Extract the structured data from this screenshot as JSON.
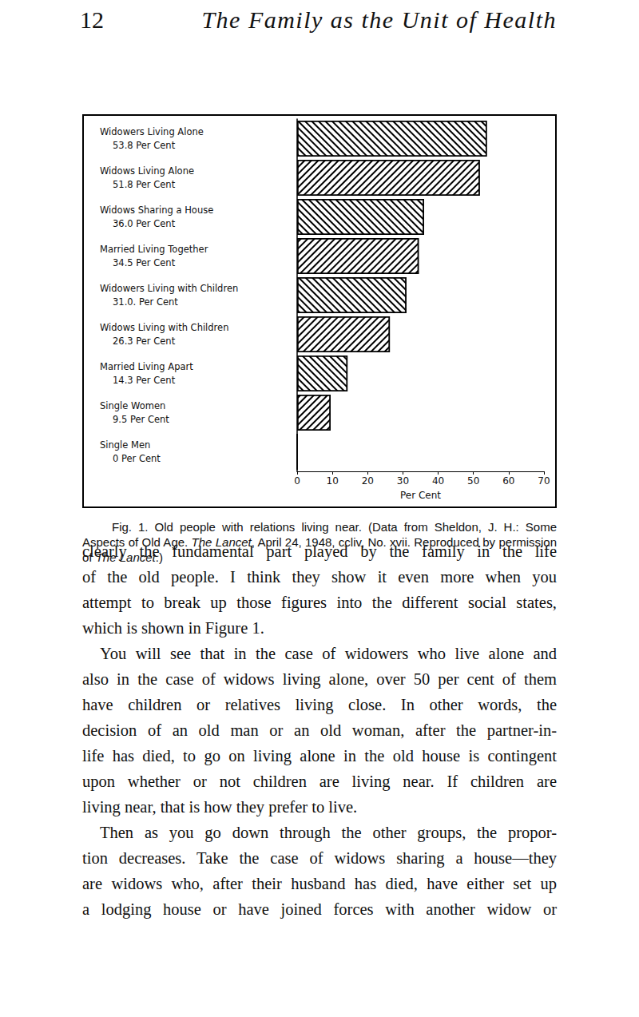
{
  "header": {
    "page_number": "12",
    "title": "The Family as the Unit of Health"
  },
  "chart_data": {
    "type": "bar",
    "orientation": "horizontal",
    "categories": [
      "Widowers Living Alone",
      "Widows Living Alone",
      "Widows Sharing a House",
      "Married Living Together",
      "Widowers Living with Children",
      "Widows Living with Children",
      "Married Living Apart",
      "Single Women",
      "Single Men"
    ],
    "values": [
      53.8,
      51.8,
      36.0,
      34.5,
      31.0,
      26.3,
      14.3,
      9.5,
      0
    ],
    "value_labels": [
      "53.8 Per Cent",
      "51.8 Per Cent",
      "36.0 Per Cent",
      "34.5 Per Cent",
      "31.0. Per Cent",
      "26.3 Per Cent",
      "14.3 Per Cent",
      "9.5 Per Cent",
      "0 Per Cent"
    ],
    "color": "#000000",
    "xlabel": "Per Cent",
    "xlim": [
      0,
      70
    ],
    "xticks": [
      0,
      10,
      20,
      30,
      40,
      50,
      60,
      70
    ],
    "grid": false
  },
  "caption": [
    {
      "text": "Fig. 1. Old people with relations living near. (Data from Sheldon, J. H.: Some Aspects of Old Age. "
    },
    {
      "text": "The Lancet",
      "style": "italic"
    },
    {
      "text": ", April 24, 1948, ccliv, No. xvii. Reproduced by permission of "
    },
    {
      "text": "The Lancet",
      "style": "italic"
    },
    {
      "text": ".)"
    }
  ],
  "body": [
    [
      "clearly the fundamental part played by the family in the life",
      "of the old people. I think they show it even more when you",
      "attempt to break up those figures into the different social states,",
      "which is shown in Figure 1."
    ],
    [
      "You will see that in the case of widowers who live alone and",
      "also in the case of widows living alone, over 50 per cent of them",
      "have children or relatives living close. In other words, the",
      "decision of an old man or an old woman, after the partner-in-",
      "life has died, to go on living alone in the old house is contingent",
      "upon whether or not children are living near. If children are",
      "living near, that is how they prefer to live."
    ],
    [
      "Then as you go down through the other groups, the propor-",
      "tion decreases. Take the case of widows sharing a house—they",
      "are widows who, after their husband has died, have either set up",
      "a lodging house or have joined forces with another widow or"
    ]
  ]
}
